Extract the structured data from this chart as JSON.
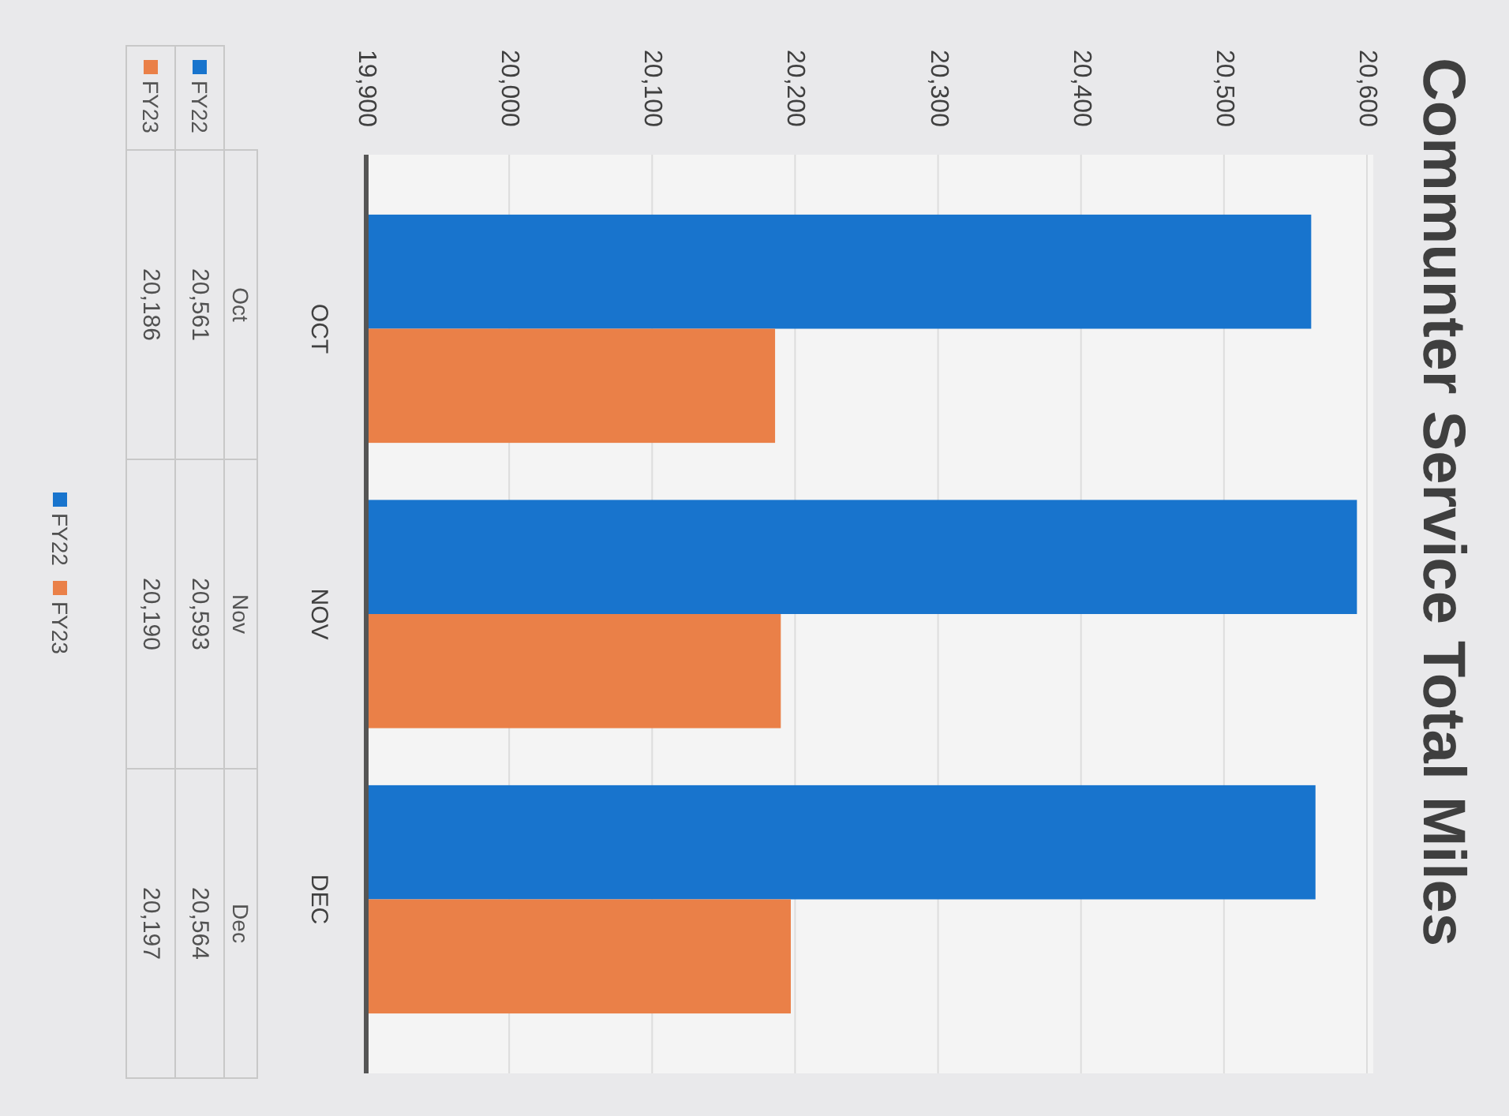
{
  "chart_data": {
    "type": "bar",
    "orientation": "horizontal",
    "title": "Communter Service Total Miles",
    "categories": [
      "OCT",
      "NOV",
      "DEC"
    ],
    "series": [
      {
        "name": "FY22",
        "color": "#1874cd",
        "values": [
          20561,
          20593,
          20564
        ],
        "value_labels": [
          "20,561",
          "20,593",
          "20,564"
        ]
      },
      {
        "name": "FY23",
        "color": "#ea8048",
        "values": [
          20186,
          20190,
          20197
        ],
        "value_labels": [
          "20,186",
          "20,190",
          "20,197"
        ]
      }
    ],
    "xlim": [
      19900,
      20600
    ],
    "xticks": [
      {
        "value": 19900,
        "label": "19,900"
      },
      {
        "value": 20000,
        "label": "20,000"
      },
      {
        "value": 20100,
        "label": "20,100"
      },
      {
        "value": 20200,
        "label": "20,200"
      },
      {
        "value": 20300,
        "label": "20,300"
      },
      {
        "value": 20400,
        "label": "20,400"
      },
      {
        "value": 20500,
        "label": "20,500"
      },
      {
        "value": 20600,
        "label": "20,600"
      }
    ],
    "grid": "x",
    "legend": "left",
    "annotations": [
      "Oct",
      "Nov",
      "Dec"
    ]
  }
}
